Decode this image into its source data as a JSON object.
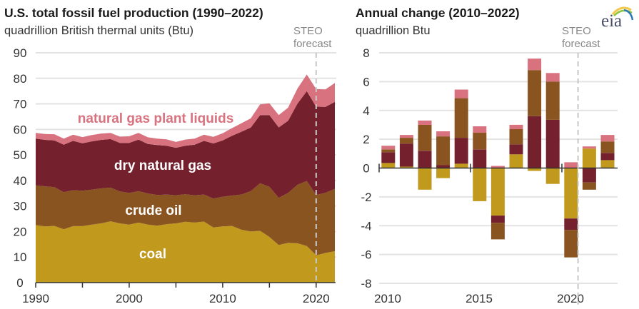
{
  "left_panel": {
    "title": "U.S. total fossil fuel production (1990–2022)",
    "subtitle": "quadrillion British thermal units (Btu)",
    "forecast_label_line1": "STEO",
    "forecast_label_line2": "forecast"
  },
  "right_panel": {
    "title": "Annual change (2010–2022)",
    "subtitle": "quadrillion Btu",
    "forecast_label_line1": "STEO",
    "forecast_label_line2": "forecast"
  },
  "logo": {
    "text": "eia",
    "icon": "eia-logo-icon"
  },
  "colors": {
    "coal": "#c1991d",
    "crude_oil": "#8a5420",
    "dry_natural_gas": "#74202d",
    "natural_gas_plant_liquids": "#d9727f",
    "gridline": "#e3e3e3",
    "forecast_line": "#c8c8c8"
  },
  "chart_data": [
    {
      "type": "area",
      "stacked": true,
      "title": "U.S. total fossil fuel production (1990–2022)",
      "ylabel": "quadrillion British thermal units (Btu)",
      "xlabel": "",
      "ylim": [
        0,
        90
      ],
      "yticks": [
        "0",
        "10",
        "20",
        "30",
        "40",
        "50",
        "60",
        "70",
        "80",
        "90"
      ],
      "ytick_values": [
        0,
        10,
        20,
        30,
        40,
        50,
        60,
        70,
        80,
        90
      ],
      "xlim": [
        1990,
        2022
      ],
      "xtick_labels": [
        "1990",
        "2000",
        "2010",
        "2020"
      ],
      "xtick_values": [
        1990,
        1995,
        2000,
        2005,
        2010,
        2015,
        2020
      ],
      "grid": true,
      "forecast_start": 2020,
      "x": [
        1990,
        1991,
        1992,
        1993,
        1994,
        1995,
        1996,
        1997,
        1998,
        1999,
        2000,
        2001,
        2002,
        2003,
        2004,
        2005,
        2006,
        2007,
        2008,
        2009,
        2010,
        2011,
        2012,
        2013,
        2014,
        2015,
        2016,
        2017,
        2018,
        2019,
        2020,
        2021,
        2022
      ],
      "series": [
        {
          "name": "coal",
          "key": "coal",
          "label": "coal",
          "values": [
            22.5,
            22.0,
            22.2,
            20.9,
            22.1,
            22.1,
            22.7,
            23.2,
            24.0,
            23.2,
            22.7,
            23.5,
            22.7,
            22.3,
            22.9,
            23.2,
            23.8,
            23.5,
            23.9,
            21.6,
            22.0,
            22.2,
            20.7,
            20.0,
            20.3,
            17.9,
            14.7,
            15.6,
            15.4,
            14.3,
            10.7,
            11.6,
            12.3
          ]
        },
        {
          "name": "crude oil",
          "key": "crude_oil",
          "label": "crude oil",
          "values": [
            15.6,
            15.7,
            15.2,
            14.5,
            14.1,
            13.9,
            13.7,
            13.7,
            13.2,
            12.5,
            12.4,
            12.3,
            12.2,
            12.0,
            11.6,
            11.0,
            10.8,
            10.7,
            10.6,
            11.3,
            11.6,
            11.9,
            13.8,
            15.8,
            18.6,
            19.6,
            18.5,
            19.5,
            22.9,
            25.5,
            23.6,
            23.6,
            24.4
          ]
        },
        {
          "name": "dry natural gas",
          "key": "dry_natural_gas",
          "label": "dry natural gas",
          "values": [
            18.3,
            18.2,
            18.3,
            18.6,
            19.3,
            18.6,
            18.9,
            19.0,
            19.0,
            19.0,
            19.6,
            20.2,
            19.4,
            19.6,
            19.1,
            18.6,
            19.0,
            19.8,
            21.0,
            21.6,
            22.1,
            23.4,
            24.6,
            24.9,
            26.7,
            28.1,
            27.6,
            28.3,
            31.8,
            35.2,
            34.6,
            33.6,
            34.1
          ]
        },
        {
          "name": "natural gas plant liquids",
          "key": "natural_gas_plant_liquids",
          "label": "natural gas plant liquids",
          "values": [
            2.2,
            2.3,
            2.4,
            2.4,
            2.4,
            2.4,
            2.5,
            2.5,
            2.4,
            2.5,
            2.6,
            2.6,
            2.6,
            2.5,
            2.5,
            2.3,
            2.4,
            2.4,
            2.4,
            2.6,
            2.8,
            3.0,
            3.3,
            3.6,
            4.2,
            4.6,
            4.8,
            5.1,
            5.9,
            6.5,
            6.9,
            6.9,
            7.4
          ]
        }
      ],
      "annotations": [
        "natural gas plant liquids",
        "dry natural gas",
        "crude oil",
        "coal",
        "STEO forecast"
      ]
    },
    {
      "type": "bar",
      "stacked": true,
      "title": "Annual change (2010–2022)",
      "ylabel": "quadrillion Btu",
      "xlabel": "",
      "ylim": [
        -8,
        8
      ],
      "yticks": [
        "-8",
        "-6",
        "-4",
        "-2",
        "0",
        "2",
        "4",
        "6",
        "8"
      ],
      "ytick_values": [
        -8,
        -6,
        -4,
        -2,
        0,
        2,
        4,
        6,
        8
      ],
      "xtick_labels": [
        "2010",
        "2015",
        "2020"
      ],
      "grid": true,
      "forecast_start": 2021,
      "categories": [
        "2010",
        "2011",
        "2012",
        "2013",
        "2014",
        "2015",
        "2016",
        "2017",
        "2018",
        "2019",
        "2020",
        "2021",
        "2022"
      ],
      "series": [
        {
          "name": "coal",
          "key": "coal",
          "values": [
            0.35,
            0.1,
            -1.5,
            -0.7,
            0.3,
            -2.3,
            -3.3,
            0.95,
            -0.2,
            -1.1,
            -3.5,
            1.35,
            0.55
          ]
        },
        {
          "name": "dry natural gas",
          "key": "dry_natural_gas",
          "values": [
            0.75,
            1.6,
            1.2,
            0.2,
            1.8,
            1.3,
            -0.5,
            0.7,
            3.6,
            3.35,
            -0.8,
            -1.0,
            0.5
          ]
        },
        {
          "name": "crude oil",
          "key": "crude_oil",
          "values": [
            0.2,
            0.4,
            1.8,
            2.0,
            2.75,
            1.15,
            -1.15,
            1.05,
            3.2,
            2.65,
            -1.9,
            -0.5,
            0.8
          ]
        },
        {
          "name": "natural gas plant liquids",
          "key": "natural_gas_plant_liquids",
          "values": [
            0.25,
            0.2,
            0.3,
            0.35,
            0.6,
            0.45,
            0.15,
            0.3,
            0.8,
            0.6,
            0.4,
            0.15,
            0.45
          ]
        }
      ]
    }
  ]
}
